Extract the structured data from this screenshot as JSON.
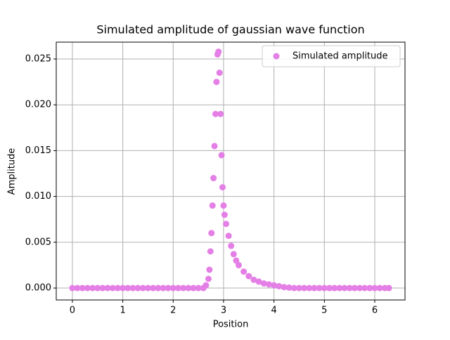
{
  "chart_data": {
    "type": "scatter",
    "title": "Simulated amplitude of gaussian wave function",
    "xlabel": "Position",
    "ylabel": "Amplitude",
    "series": [
      {
        "name": "Simulated amplitude",
        "color": "#e47fe6",
        "x": [
          0,
          0.1,
          0.2,
          0.3,
          0.4,
          0.5,
          0.6,
          0.7,
          0.8,
          0.9,
          1.0,
          1.1,
          1.2,
          1.3,
          1.4,
          1.5,
          1.6,
          1.7,
          1.8,
          1.9,
          2.0,
          2.1,
          2.2,
          2.3,
          2.4,
          2.5,
          2.6,
          2.65,
          2.7,
          2.72,
          2.74,
          2.76,
          2.78,
          2.8,
          2.82,
          2.84,
          2.86,
          2.88,
          2.9,
          2.92,
          2.94,
          2.96,
          2.98,
          3.0,
          3.02,
          3.05,
          3.1,
          3.15,
          3.2,
          3.25,
          3.3,
          3.4,
          3.5,
          3.6,
          3.7,
          3.8,
          3.9,
          4.0,
          4.1,
          4.2,
          4.3,
          4.4,
          4.5,
          4.6,
          4.7,
          4.8,
          4.9,
          5.0,
          5.1,
          5.2,
          5.3,
          5.4,
          5.5,
          5.6,
          5.7,
          5.8,
          5.9,
          6.0,
          6.1,
          6.2,
          6.28
        ],
        "values": [
          0,
          0,
          0,
          0,
          0,
          0,
          0,
          0,
          0,
          0,
          0,
          0,
          0,
          0,
          0,
          0,
          0,
          0,
          0,
          0,
          0,
          0,
          0,
          0,
          0,
          0,
          0,
          0.0003,
          0.001,
          0.002,
          0.004,
          0.006,
          0.009,
          0.012,
          0.0155,
          0.019,
          0.0225,
          0.0255,
          0.0258,
          0.0235,
          0.019,
          0.0145,
          0.011,
          0.009,
          0.008,
          0.007,
          0.0057,
          0.0046,
          0.0037,
          0.003,
          0.0025,
          0.0018,
          0.0013,
          0.0009,
          0.0007,
          0.0005,
          0.0004,
          0.0003,
          0.0002,
          0.0001,
          5e-05,
          0,
          0,
          0,
          0,
          0,
          0,
          0,
          0,
          0,
          0,
          0,
          0,
          0,
          0,
          0,
          0,
          0,
          0,
          0,
          0
        ]
      }
    ],
    "xlim": [
      -0.32,
      6.6
    ],
    "ylim": [
      -0.0013,
      0.02684
    ],
    "xticks": [
      0,
      1,
      2,
      3,
      4,
      5,
      6
    ],
    "yticks": [
      {
        "value": 0,
        "label": "0.000"
      },
      {
        "value": 0.005,
        "label": "0.005"
      },
      {
        "value": 0.01,
        "label": "0.010"
      },
      {
        "value": 0.015,
        "label": "0.015"
      },
      {
        "value": 0.02,
        "label": "0.020"
      },
      {
        "value": 0.025,
        "label": "0.025"
      }
    ],
    "grid": true,
    "legend": "upper right"
  }
}
